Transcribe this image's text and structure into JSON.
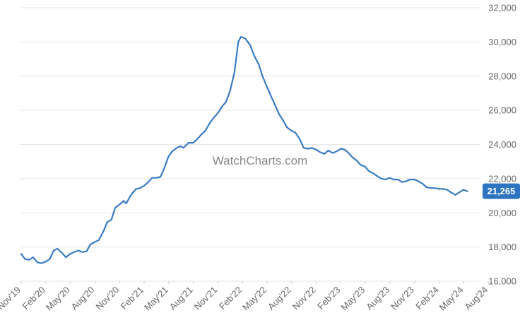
{
  "watermark": "WatchCharts.com",
  "colors": {
    "line": "#3a7bc4",
    "grid": "#e6e6e6",
    "last_badge": "#2f74c0",
    "tick_text": "#666666"
  },
  "chart_data": {
    "type": "line",
    "title": "",
    "xlabel": "",
    "ylabel": "",
    "ylim": [
      16000,
      32000
    ],
    "y_ticks": [
      "16,000",
      "18,000",
      "20,000",
      "22,000",
      "24,000",
      "26,000",
      "28,000",
      "30,000",
      "32,000"
    ],
    "x_ticks": [
      "Nov'19",
      "Feb'20",
      "May'20",
      "Aug'20",
      "Nov'20",
      "Feb'21",
      "May'21",
      "Aug'21",
      "Nov'21",
      "Feb'22",
      "May'22",
      "Aug'22",
      "Nov'22",
      "Feb'23",
      "May'23",
      "Aug'23",
      "Nov'23",
      "Feb'24",
      "May'24",
      "Aug'24"
    ],
    "grid": true,
    "last_value_label": "21,265",
    "series": [
      {
        "points": [
          [
            "2019-11-01",
            17600
          ],
          [
            "2019-11-15",
            17300
          ],
          [
            "2019-12-01",
            17250
          ],
          [
            "2019-12-15",
            17400
          ],
          [
            "2020-01-01",
            17100
          ],
          [
            "2020-01-15",
            17050
          ],
          [
            "2020-02-01",
            17150
          ],
          [
            "2020-02-15",
            17300
          ],
          [
            "2020-03-01",
            17800
          ],
          [
            "2020-03-15",
            17900
          ],
          [
            "2020-04-01",
            17650
          ],
          [
            "2020-04-15",
            17400
          ],
          [
            "2020-05-01",
            17600
          ],
          [
            "2020-05-15",
            17700
          ],
          [
            "2020-06-01",
            17800
          ],
          [
            "2020-06-15",
            17700
          ],
          [
            "2020-07-01",
            17750
          ],
          [
            "2020-07-15",
            18150
          ],
          [
            "2020-08-01",
            18300
          ],
          [
            "2020-08-15",
            18400
          ],
          [
            "2020-09-01",
            18900
          ],
          [
            "2020-09-15",
            19450
          ],
          [
            "2020-10-01",
            19600
          ],
          [
            "2020-10-15",
            20300
          ],
          [
            "2020-11-01",
            20500
          ],
          [
            "2020-11-15",
            20700
          ],
          [
            "2020-11-25",
            20550
          ],
          [
            "2020-12-15",
            21100
          ],
          [
            "2021-01-01",
            21400
          ],
          [
            "2021-01-15",
            21450
          ],
          [
            "2021-02-01",
            21600
          ],
          [
            "2021-02-15",
            21800
          ],
          [
            "2021-03-01",
            22050
          ],
          [
            "2021-03-15",
            22050
          ],
          [
            "2021-04-01",
            22100
          ],
          [
            "2021-04-15",
            22600
          ],
          [
            "2021-05-01",
            23300
          ],
          [
            "2021-05-15",
            23600
          ],
          [
            "2021-06-01",
            23800
          ],
          [
            "2021-06-15",
            23900
          ],
          [
            "2021-06-25",
            23800
          ],
          [
            "2021-07-15",
            24100
          ],
          [
            "2021-08-01",
            24100
          ],
          [
            "2021-08-15",
            24300
          ],
          [
            "2021-09-01",
            24600
          ],
          [
            "2021-09-15",
            24800
          ],
          [
            "2021-10-01",
            25250
          ],
          [
            "2021-10-15",
            25550
          ],
          [
            "2021-11-01",
            25850
          ],
          [
            "2021-11-15",
            26200
          ],
          [
            "2021-12-01",
            26500
          ],
          [
            "2021-12-15",
            27100
          ],
          [
            "2022-01-01",
            28200
          ],
          [
            "2022-01-15",
            30000
          ],
          [
            "2022-01-25",
            30300
          ],
          [
            "2022-02-10",
            30200
          ],
          [
            "2022-03-01",
            29800
          ],
          [
            "2022-03-15",
            29200
          ],
          [
            "2022-04-01",
            28700
          ],
          [
            "2022-04-15",
            28000
          ],
          [
            "2022-05-01",
            27400
          ],
          [
            "2022-05-15",
            26900
          ],
          [
            "2022-06-01",
            26300
          ],
          [
            "2022-06-15",
            25800
          ],
          [
            "2022-07-01",
            25400
          ],
          [
            "2022-07-15",
            25000
          ],
          [
            "2022-08-01",
            24800
          ],
          [
            "2022-08-15",
            24700
          ],
          [
            "2022-09-01",
            24300
          ],
          [
            "2022-09-15",
            23800
          ],
          [
            "2022-10-01",
            23750
          ],
          [
            "2022-10-15",
            23800
          ],
          [
            "2022-11-01",
            23700
          ],
          [
            "2022-11-15",
            23550
          ],
          [
            "2022-12-01",
            23450
          ],
          [
            "2022-12-15",
            23650
          ],
          [
            "2023-01-01",
            23500
          ],
          [
            "2023-01-15",
            23600
          ],
          [
            "2023-02-01",
            23750
          ],
          [
            "2023-02-15",
            23700
          ],
          [
            "2023-03-01",
            23500
          ],
          [
            "2023-03-15",
            23250
          ],
          [
            "2023-04-01",
            23050
          ],
          [
            "2023-04-15",
            22800
          ],
          [
            "2023-05-01",
            22700
          ],
          [
            "2023-05-15",
            22450
          ],
          [
            "2023-06-01",
            22300
          ],
          [
            "2023-06-15",
            22150
          ],
          [
            "2023-07-01",
            22000
          ],
          [
            "2023-07-15",
            21950
          ],
          [
            "2023-08-01",
            22050
          ],
          [
            "2023-08-15",
            21950
          ],
          [
            "2023-09-01",
            21950
          ],
          [
            "2023-09-15",
            21800
          ],
          [
            "2023-10-01",
            21850
          ],
          [
            "2023-10-15",
            21950
          ],
          [
            "2023-11-01",
            21950
          ],
          [
            "2023-11-15",
            21850
          ],
          [
            "2023-12-01",
            21700
          ],
          [
            "2023-12-15",
            21500
          ],
          [
            "2024-01-01",
            21450
          ],
          [
            "2024-01-15",
            21450
          ],
          [
            "2024-02-01",
            21400
          ],
          [
            "2024-02-15",
            21400
          ],
          [
            "2024-03-01",
            21350
          ],
          [
            "2024-03-15",
            21200
          ],
          [
            "2024-04-01",
            21050
          ],
          [
            "2024-04-15",
            21200
          ],
          [
            "2024-05-01",
            21350
          ],
          [
            "2024-05-15",
            21265
          ]
        ]
      }
    ]
  }
}
